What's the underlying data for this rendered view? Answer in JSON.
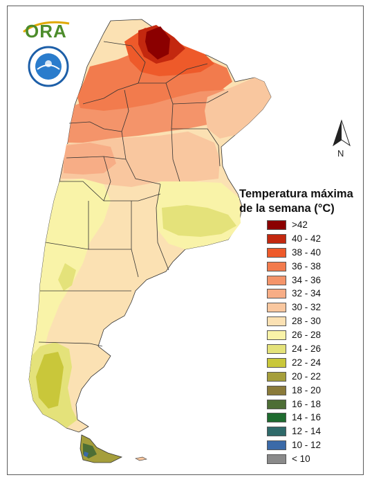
{
  "logo": {
    "text": "ORA",
    "accent_color": "#4c8c2b",
    "swoosh_color": "#e0a800"
  },
  "seal": {
    "icon": "smn-seal-icon",
    "ring_color": "#1d5fa8"
  },
  "north_arrow": {
    "icon": "north-arrow-icon",
    "label": "N"
  },
  "legend": {
    "title_line1": "Temperatura máxima",
    "title_line2": "de la semana (°C)",
    "classes": [
      {
        "label": ">42",
        "color": "#8b0000"
      },
      {
        "label": "40 - 42",
        "color": "#c3280f"
      },
      {
        "label": "38 - 40",
        "color": "#ee5a2a"
      },
      {
        "label": "36 - 38",
        "color": "#f27b4d"
      },
      {
        "label": "34 - 36",
        "color": "#f4946a"
      },
      {
        "label": "32 - 34",
        "color": "#f7ad86"
      },
      {
        "label": "30 - 32",
        "color": "#f9c79f"
      },
      {
        "label": "28 - 30",
        "color": "#fbe1b3"
      },
      {
        "label": "26 - 28",
        "color": "#f9f3a8"
      },
      {
        "label": "24 - 26",
        "color": "#e4e27a"
      },
      {
        "label": "22 - 24",
        "color": "#c9c73a"
      },
      {
        "label": "20 - 22",
        "color": "#a59e3b"
      },
      {
        "label": "18 - 20",
        "color": "#8a7a3a"
      },
      {
        "label": "16 - 18",
        "color": "#4d6e35"
      },
      {
        "label": "14 - 16",
        "color": "#1e6b2f"
      },
      {
        "label": "12 - 14",
        "color": "#2f6a6a"
      },
      {
        "label": "10 - 12",
        "color": "#3b6aa8"
      },
      {
        "label": "< 10",
        "color": "#8a8a8a"
      }
    ]
  },
  "map": {
    "outline_color": "#333333",
    "region_colors": {
      "northwest_hot": "#c3280f",
      "north_core": "#8b0000",
      "north_warm": "#ee5a2a",
      "chaco": "#f27b4d",
      "cuyo": "#f7ad86",
      "center": "#f9c79f",
      "pampa": "#fbe1b3",
      "buenos_aires": "#f9f3a8",
      "bsas_cool": "#e4e27a",
      "patagonia_north": "#fbe1b3",
      "patagonia_west": "#f9f3a8",
      "andes_south": "#e4e27a",
      "santa_cruz_west": "#c9c73a",
      "tierra_del_fuego": "#a59e3b",
      "tdf_cold": "#4d6e35",
      "tdf_coldest": "#3b6aa8"
    }
  }
}
